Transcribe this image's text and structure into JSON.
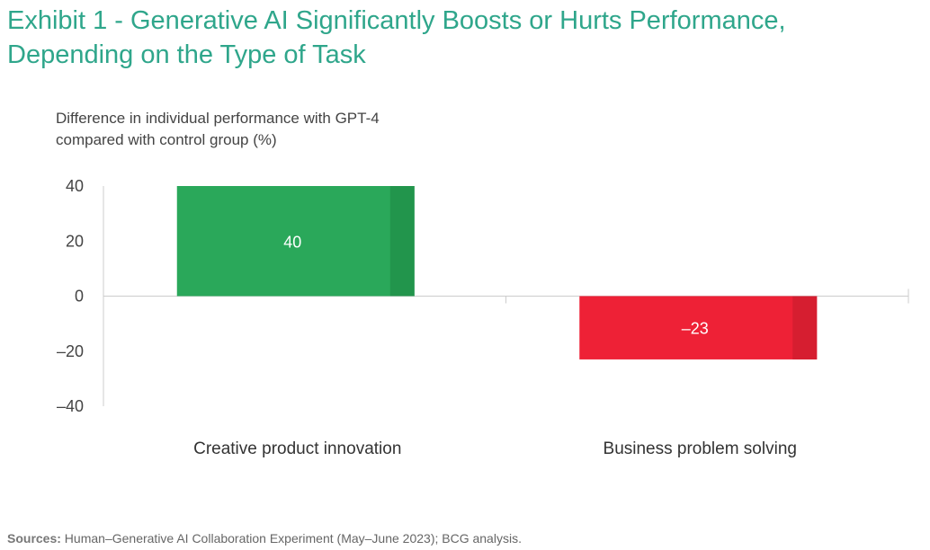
{
  "title": "Exhibit 1 - Generative AI Significantly Boosts or Hurts Performance, Depending on the Type of Task",
  "colors": {
    "title": "#2fa68b",
    "positive": "#2aa85a",
    "positive_dark": "#22954c",
    "negative": "#ee2136",
    "negative_dark": "#d61e30",
    "axis": "#cccccc"
  },
  "chart_data": {
    "type": "bar",
    "title": "",
    "ylabel": "Difference in individual performance with GPT-4 compared with control group (%)",
    "xlabel": "",
    "categories": [
      "Creative product innovation",
      "Business problem solving"
    ],
    "values": [
      40,
      -23
    ],
    "value_labels": [
      "40",
      "–23"
    ],
    "ylim": [
      -40,
      40
    ],
    "yticks": [
      40,
      20,
      0,
      -20,
      -40
    ],
    "ytick_labels": [
      "40",
      "20",
      "0",
      "–20",
      "–40"
    ],
    "grid": false,
    "legend": "none"
  },
  "source": {
    "label": "Sources:",
    "text": " Human–Generative AI Collaboration Experiment (May–June 2023); BCG analysis."
  }
}
